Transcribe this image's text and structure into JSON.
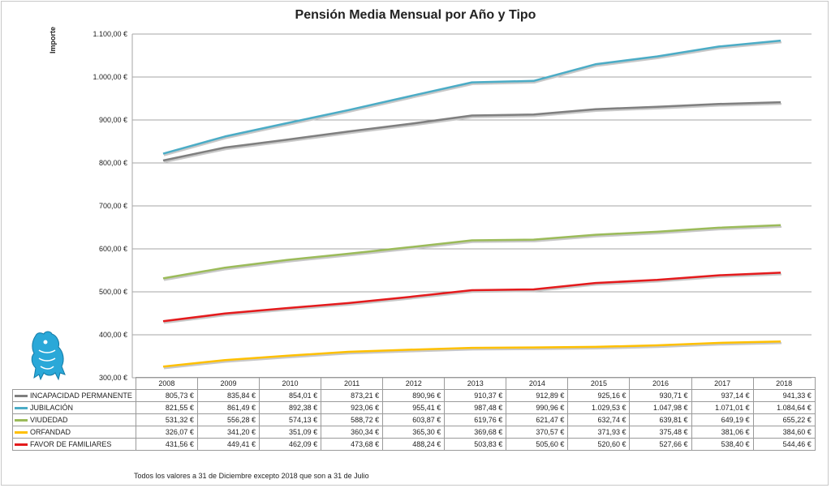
{
  "colors": {
    "INCAPACIDAD PERMANENTE": "#7f7f7f",
    "JUBILACIÓN": "#4bacc6",
    "VIUDEDAD": "#9bbb59",
    "ORFANDAD": "#ffc000",
    "FAVOR DE FAMILIARES": "#e41a1c"
  },
  "footnote": "Todos los valores a 31 de Diciembre excepto 2018 que son a 31 de Julio",
  "chart_data": {
    "type": "line",
    "title": "Pensión Media Mensual por Año y Tipo",
    "ylabel": "Importe",
    "xlabel": "",
    "ylim": [
      300,
      1100
    ],
    "ytick_labels": [
      "1.100,00 €",
      "1.000,00 €",
      "900,00 €",
      "800,00 €",
      "700,00 €",
      "600,00 €",
      "500,00 €",
      "400,00 €",
      "300,00 €"
    ],
    "yticks": [
      1100,
      1000,
      900,
      800,
      700,
      600,
      500,
      400,
      300
    ],
    "grid": true,
    "legend": "data table below chart",
    "categories": [
      "2008",
      "2009",
      "2010",
      "2011",
      "2012",
      "2013",
      "2014",
      "2015",
      "2016",
      "2017",
      "2018"
    ],
    "series": [
      {
        "name": "INCAPACIDAD PERMANENTE",
        "values": [
          805.73,
          835.84,
          854.01,
          873.21,
          890.96,
          910.37,
          912.89,
          925.16,
          930.71,
          937.14,
          941.33
        ],
        "labels": [
          "805,73 €",
          "835,84 €",
          "854,01 €",
          "873,21 €",
          "890,96 €",
          "910,37 €",
          "912,89 €",
          "925,16 €",
          "930,71 €",
          "937,14 €",
          "941,33 €"
        ]
      },
      {
        "name": "JUBILACIÓN",
        "values": [
          821.55,
          861.49,
          892.38,
          923.06,
          955.41,
          987.48,
          990.96,
          1029.53,
          1047.98,
          1071.01,
          1084.64
        ],
        "labels": [
          "821,55 €",
          "861,49 €",
          "892,38 €",
          "923,06 €",
          "955,41 €",
          "987,48 €",
          "990,96 €",
          "1.029,53 €",
          "1.047,98 €",
          "1.071,01 €",
          "1.084,64 €"
        ]
      },
      {
        "name": "VIUDEDAD",
        "values": [
          531.32,
          556.28,
          574.13,
          588.72,
          603.87,
          619.76,
          621.47,
          632.74,
          639.81,
          649.19,
          655.22
        ],
        "labels": [
          "531,32 €",
          "556,28 €",
          "574,13 €",
          "588,72 €",
          "603,87 €",
          "619,76 €",
          "621,47 €",
          "632,74 €",
          "639,81 €",
          "649,19 €",
          "655,22 €"
        ]
      },
      {
        "name": "ORFANDAD",
        "values": [
          326.07,
          341.2,
          351.09,
          360.34,
          365.3,
          369.68,
          370.57,
          371.93,
          375.48,
          381.06,
          384.6
        ],
        "labels": [
          "326,07 €",
          "341,20 €",
          "351,09 €",
          "360,34 €",
          "365,30 €",
          "369,68 €",
          "370,57 €",
          "371,93 €",
          "375,48 €",
          "381,06 €",
          "384,60 €"
        ]
      },
      {
        "name": "FAVOR DE FAMILIARES",
        "values": [
          431.56,
          449.41,
          462.09,
          473.68,
          488.24,
          503.83,
          505.6,
          520.6,
          527.66,
          538.4,
          544.46
        ],
        "labels": [
          "431,56 €",
          "449,41 €",
          "462,09 €",
          "473,68 €",
          "488,24 €",
          "503,83 €",
          "505,60 €",
          "520,60 €",
          "527,66 €",
          "538,40 €",
          "544,46 €"
        ]
      }
    ]
  }
}
